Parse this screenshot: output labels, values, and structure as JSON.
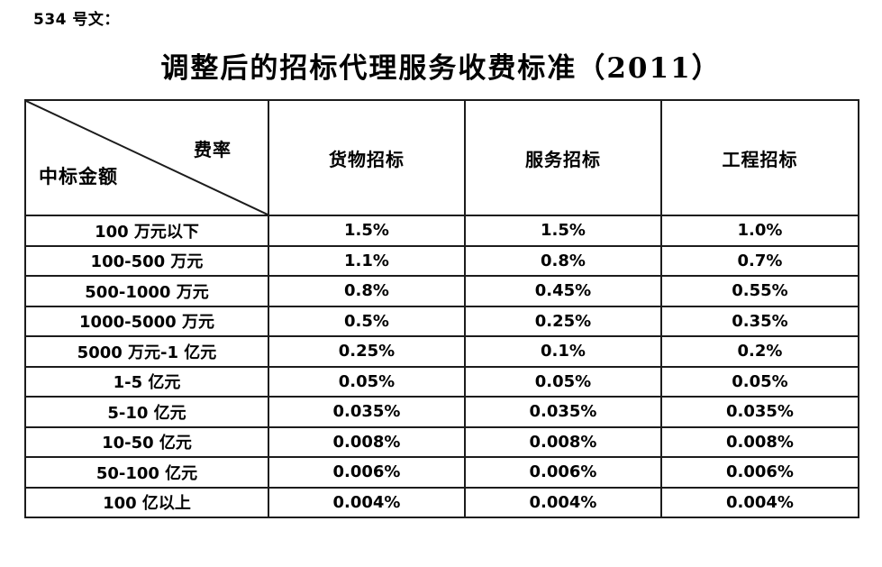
{
  "page": {
    "doc_number": "534 号文：",
    "title": "调整后的招标代理服务收费标准（2011）"
  },
  "table": {
    "corner": {
      "top_right": "费率",
      "bottom_left": "中标金额"
    },
    "columns": [
      "货物招标",
      "服务招标",
      "工程招标"
    ],
    "rows": [
      {
        "label": "100 万元以下",
        "values": [
          "1.5%",
          "1.5%",
          "1.0%"
        ]
      },
      {
        "label": "100-500 万元",
        "values": [
          "1.1%",
          "0.8%",
          "0.7%"
        ]
      },
      {
        "label": "500-1000 万元",
        "values": [
          "0.8%",
          "0.45%",
          "0.55%"
        ]
      },
      {
        "label": "1000-5000 万元",
        "values": [
          "0.5%",
          "0.25%",
          "0.35%"
        ]
      },
      {
        "label": "5000 万元-1 亿元",
        "values": [
          "0.25%",
          "0.1%",
          "0.2%"
        ]
      },
      {
        "label": "1-5 亿元",
        "values": [
          "0.05%",
          "0.05%",
          "0.05%"
        ]
      },
      {
        "label": "5-10 亿元",
        "values": [
          "0.035%",
          "0.035%",
          "0.035%"
        ]
      },
      {
        "label": "10-50 亿元",
        "values": [
          "0.008%",
          "0.008%",
          "0.008%"
        ]
      },
      {
        "label": "50-100 亿元",
        "values": [
          "0.006%",
          "0.006%",
          "0.006%"
        ]
      },
      {
        "label": "100 亿以上",
        "values": [
          "0.004%",
          "0.004%",
          "0.004%"
        ]
      }
    ]
  },
  "colors": {
    "background": "#ffffff",
    "text": "#000000",
    "border": "#1c1c1c"
  }
}
